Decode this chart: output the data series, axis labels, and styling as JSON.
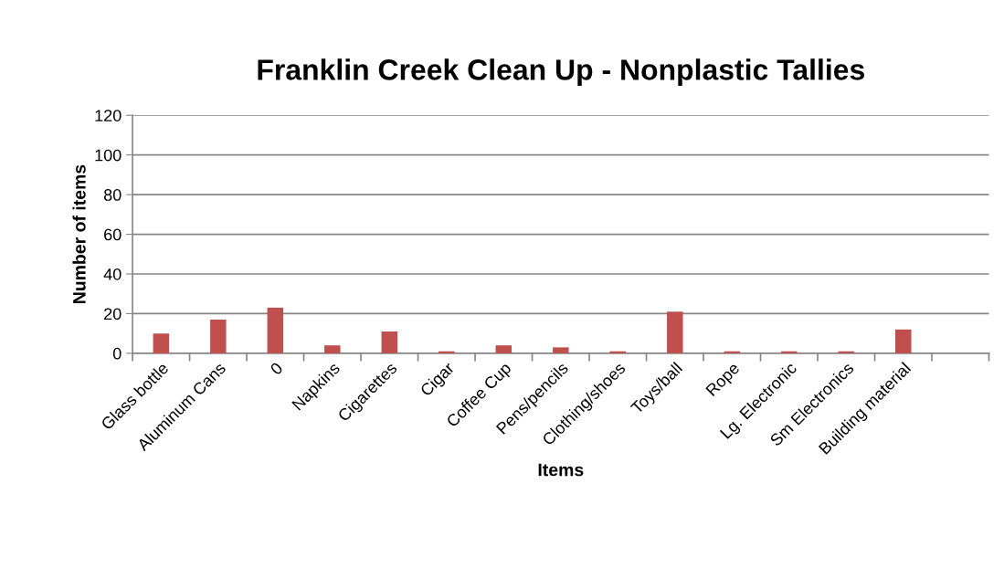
{
  "chart_data": {
    "type": "bar",
    "title": "Franklin Creek Clean Up - Nonplastic Tallies",
    "xlabel": "Items",
    "ylabel": "Number of items",
    "categories": [
      "Glass bottle",
      "Aluminum Cans",
      "0",
      "Napkins",
      "Cigarettes",
      "Cigar",
      "Coffee Cup",
      "Pens/pencils",
      "Clothing/shoes",
      "Toys/ball",
      "Rope",
      "Lg. Electronic",
      "Sm Electronics",
      "Building material",
      null
    ],
    "values": [
      10,
      17,
      23,
      4,
      11,
      1,
      4,
      3,
      1,
      21,
      1,
      1,
      1,
      12,
      null
    ],
    "color": "#c0504d",
    "ylim": [
      0,
      120
    ],
    "yticks": [
      0,
      20,
      40,
      60,
      80,
      100,
      120
    ],
    "grid": "y",
    "legend": false
  }
}
